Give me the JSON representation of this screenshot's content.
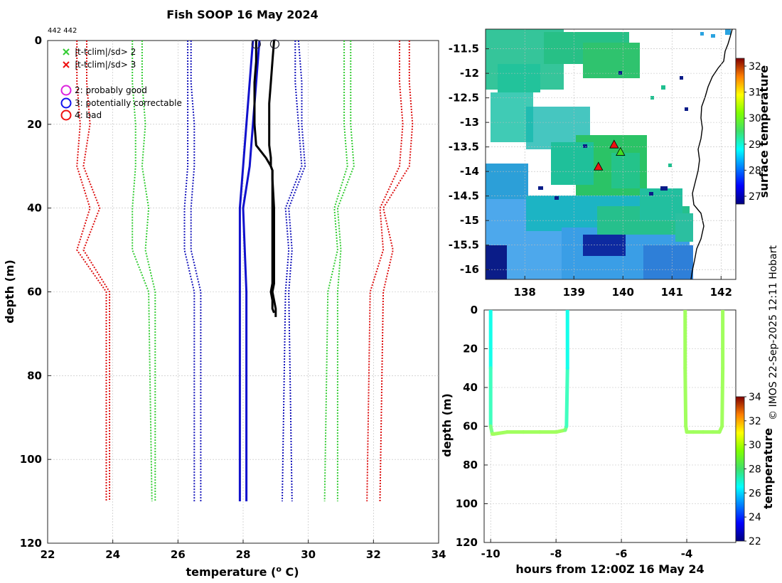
{
  "page_title": "Fish SOOP 16 May 2024",
  "count_label": "442 442",
  "watermark": "© IMOS 22-Sep-2025 12:11 Hobart",
  "legend": {
    "cross_green": "|t-tclim|/sd> 2",
    "cross_red": "|t-tclim|/sd> 3",
    "flag2": "2: probably good",
    "flag3": "3: potentially correctable",
    "flag4": "4: bad"
  },
  "colors": {
    "red": "#dd1111",
    "green": "#33cc33",
    "blue": "#1515bb",
    "profile_blue": "#1111cc",
    "profile_black": "#000000",
    "magenta": "#dd22dd",
    "flag_blue": "#1111ee",
    "flag_red": "#ee1111"
  },
  "chart_data": [
    {
      "type": "line",
      "name": "profile",
      "xlabel": "temperature (",
      "xlabel_sup": "o",
      "xlabel_end": " C)",
      "ylabel": "depth (m)",
      "xlim": [
        22,
        34
      ],
      "ylim": [
        0,
        120
      ],
      "y_reversed": true,
      "xticks": [
        "22",
        "24",
        "26",
        "28",
        "30",
        "32",
        "34"
      ],
      "yticks": [
        "0",
        "20",
        "40",
        "60",
        "80",
        "100",
        "120"
      ],
      "climatology_depths": [
        0,
        10,
        20,
        30,
        40,
        50,
        60,
        110
      ],
      "climatology_series": [
        {
          "name": "clim-3sd lo",
          "color": "red",
          "values": [
            22.9,
            22.9,
            23.0,
            22.9,
            23.3,
            22.9,
            23.8,
            23.8
          ]
        },
        {
          "name": "clim-3sd hi",
          "color": "red",
          "values": [
            23.2,
            23.2,
            23.3,
            23.1,
            23.6,
            23.1,
            23.9,
            23.9
          ]
        },
        {
          "name": "clim-2sd lo",
          "color": "green",
          "values": [
            24.6,
            24.6,
            24.7,
            24.7,
            24.6,
            24.6,
            25.1,
            25.2
          ]
        },
        {
          "name": "clim-2sd hi",
          "color": "green",
          "values": [
            24.9,
            24.9,
            25.0,
            24.9,
            25.1,
            25.0,
            25.3,
            25.3
          ]
        },
        {
          "name": "clim-1sd lo",
          "color": "blue",
          "values": [
            26.3,
            26.3,
            26.3,
            26.3,
            26.2,
            26.2,
            26.5,
            26.5
          ]
        },
        {
          "name": "clim-1sd hi",
          "color": "blue",
          "values": [
            26.4,
            26.4,
            26.5,
            26.5,
            26.4,
            26.4,
            26.7,
            26.7
          ]
        },
        {
          "name": "clim+1sd lo",
          "color": "blue",
          "values": [
            29.6,
            29.6,
            29.7,
            29.8,
            29.3,
            29.4,
            29.3,
            29.2
          ]
        },
        {
          "name": "clim+1sd hi",
          "color": "blue",
          "values": [
            29.7,
            29.8,
            29.8,
            29.9,
            29.4,
            29.5,
            29.4,
            29.5
          ]
        },
        {
          "name": "clim+2sd lo",
          "color": "green",
          "values": [
            31.1,
            31.1,
            31.1,
            31.2,
            30.8,
            30.9,
            30.6,
            30.5
          ]
        },
        {
          "name": "clim+2sd hi",
          "color": "green",
          "values": [
            31.3,
            31.3,
            31.3,
            31.4,
            30.9,
            31.0,
            30.9,
            30.9
          ]
        },
        {
          "name": "clim+3sd lo",
          "color": "red",
          "values": [
            32.8,
            32.8,
            32.9,
            32.8,
            32.2,
            32.3,
            31.9,
            31.8
          ]
        },
        {
          "name": "clim+3sd hi",
          "color": "red",
          "values": [
            33.1,
            33.1,
            33.2,
            33.1,
            32.3,
            32.6,
            32.3,
            32.2
          ]
        }
      ],
      "mean_depths": [
        0,
        30,
        40,
        60,
        110
      ],
      "mean_series": [
        {
          "name": "mean lo",
          "color": "profile_blue",
          "values": [
            28.3,
            28.0,
            27.9,
            27.9,
            27.9
          ]
        },
        {
          "name": "mean hi",
          "color": "profile_blue",
          "values": [
            28.5,
            28.2,
            28.0,
            28.1,
            28.1
          ]
        }
      ],
      "profiles": [
        {
          "name": "profile 1",
          "color": "profile_black",
          "depths": [
            0,
            5,
            10,
            15,
            20,
            25,
            28,
            30,
            31,
            33,
            40,
            50,
            58,
            60,
            62,
            64,
            65
          ],
          "values": [
            28.4,
            28.4,
            28.35,
            28.35,
            28.35,
            28.4,
            28.7,
            28.85,
            28.9,
            28.9,
            28.9,
            28.9,
            28.9,
            28.85,
            28.9,
            28.9,
            28.95
          ]
        },
        {
          "name": "profile 2",
          "color": "profile_black",
          "depths": [
            0,
            5,
            10,
            15,
            20,
            25,
            28,
            30,
            31,
            33,
            40,
            50,
            58,
            60,
            62,
            64,
            66
          ],
          "values": [
            28.95,
            28.9,
            28.85,
            28.8,
            28.8,
            28.8,
            28.85,
            28.85,
            28.9,
            28.9,
            28.95,
            28.95,
            28.95,
            28.9,
            28.95,
            29.0,
            29.0
          ]
        }
      ],
      "surface_markers": [
        {
          "x": 28.4,
          "y": 0
        },
        {
          "x": 28.97,
          "y": 0
        }
      ]
    },
    {
      "type": "heatmap",
      "name": "map",
      "xlim": [
        137.2,
        142.3
      ],
      "ylim": [
        -16.2,
        -11.1
      ],
      "xticks": [
        "138",
        "139",
        "140",
        "141",
        "142"
      ],
      "yticks": [
        "-11.5",
        "-12",
        "-12.5",
        "-13",
        "-13.5",
        "-14",
        "-14.5",
        "-15",
        "-15.5",
        "-16"
      ],
      "colorbar_label": "surface temperature",
      "colorbar_ticks": [
        "32",
        "31",
        "30",
        "29",
        "28",
        "27"
      ],
      "colorbar_range": [
        26.7,
        32.3
      ],
      "markers": [
        {
          "lon": 139.82,
          "lat": -13.45,
          "kind": "red-triangle"
        },
        {
          "lon": 139.95,
          "lat": -13.6,
          "kind": "green-triangle"
        },
        {
          "lon": 139.5,
          "lat": -13.9,
          "kind": "red-triangle"
        }
      ]
    },
    {
      "type": "scatter",
      "name": "time-depth",
      "xlabel": "hours from 12:00Z 16 May 24",
      "ylabel": "depth (m)",
      "xlim": [
        -10.2,
        -2.5
      ],
      "ylim": [
        0,
        120
      ],
      "y_reversed": true,
      "xticks": [
        "-10",
        "-8",
        "-6",
        "-4"
      ],
      "yticks": [
        "0",
        "20",
        "40",
        "60",
        "80",
        "100",
        "120"
      ],
      "colorbar_label": "temperature",
      "colorbar_ticks": [
        "34",
        "32",
        "30",
        "28",
        "26",
        "24",
        "22"
      ],
      "colorbar_range": [
        22,
        34
      ],
      "casts": [
        {
          "x": [
            -10.0,
            -10.0,
            -10.0,
            -9.95,
            -9.9,
            -9.5,
            -9.0,
            -8.5,
            -8.0,
            -7.72,
            -7.68,
            -7.65,
            -7.65
          ],
          "y": [
            0,
            30,
            60,
            64,
            64,
            63,
            63,
            63,
            63,
            62,
            60,
            30,
            0
          ],
          "t": [
            26.5,
            27,
            27.5,
            28.4,
            28.4,
            28.4,
            28.4,
            28.4,
            28.4,
            28.4,
            27.5,
            27,
            26.5
          ]
        },
        {
          "x": [
            -4.05,
            -4.05,
            -4.03,
            -4.0,
            -3.8,
            -3.5,
            -3.2,
            -3.0,
            -2.92,
            -2.9,
            -2.9
          ],
          "y": [
            0,
            30,
            60,
            63,
            63,
            63,
            63,
            63,
            60,
            30,
            0
          ],
          "t": [
            28.4,
            28.4,
            28.4,
            28.4,
            28.4,
            28.4,
            28.4,
            28.4,
            28.4,
            28.4,
            28.4
          ]
        }
      ]
    }
  ]
}
